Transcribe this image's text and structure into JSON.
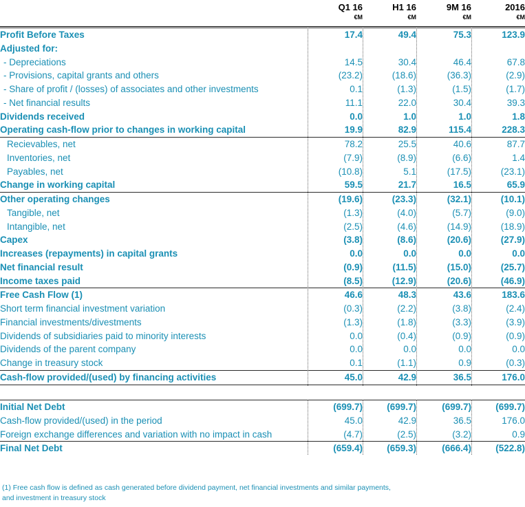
{
  "header": {
    "columns": [
      {
        "period": "Q1 16",
        "unit": "€M"
      },
      {
        "period": "H1 16",
        "unit": "€M"
      },
      {
        "period": "9M 16",
        "unit": "€M"
      },
      {
        "period": "2016",
        "unit": "€M"
      }
    ]
  },
  "rows1": [
    {
      "label": "Profit Before Taxes",
      "bold": true,
      "indent": 0,
      "values": [
        "17.4",
        "49.4",
        "75.3",
        "123.9"
      ]
    },
    {
      "label": "Adjusted for:",
      "bold": true,
      "indent": 0,
      "values": [
        "",
        "",
        "",
        ""
      ]
    },
    {
      "label": "- Depreciations",
      "bold": false,
      "indent": 1,
      "values": [
        "14.5",
        "30.4",
        "46.4",
        "67.8"
      ]
    },
    {
      "label": "- Provisions, capital grants and others",
      "bold": false,
      "indent": 1,
      "values": [
        "(23.2)",
        "(18.6)",
        "(36.3)",
        "(2.9)"
      ]
    },
    {
      "label": "- Share of profit / (losses) of associates and other investments",
      "bold": false,
      "indent": 1,
      "values": [
        "0.1",
        "(1.3)",
        "(1.5)",
        "(1.7)"
      ]
    },
    {
      "label": "- Net financial results",
      "bold": false,
      "indent": 1,
      "values": [
        "11.1",
        "22.0",
        "30.4",
        "39.3"
      ]
    },
    {
      "label": "Dividends received",
      "bold": true,
      "indent": 0,
      "values": [
        "0.0",
        "1.0",
        "1.0",
        "1.8"
      ]
    },
    {
      "label": "Operating cash-flow prior to changes in working capital",
      "bold": true,
      "indent": 0,
      "values": [
        "19.9",
        "82.9",
        "115.4",
        "228.3"
      ]
    },
    {
      "label": "Recievables, net",
      "bold": false,
      "indent": 2,
      "values": [
        "78.2",
        "25.5",
        "40.6",
        "87.7"
      ]
    },
    {
      "label": "Inventories, net",
      "bold": false,
      "indent": 2,
      "values": [
        "(7.9)",
        "(8.9)",
        "(6.6)",
        "1.4"
      ]
    },
    {
      "label": "Payables, net",
      "bold": false,
      "indent": 2,
      "values": [
        "(10.8)",
        "5.1",
        "(17.5)",
        "(23.1)"
      ]
    },
    {
      "label": "Change in working capital",
      "bold": true,
      "indent": 0,
      "values": [
        "59.5",
        "21.7",
        "16.5",
        "65.9"
      ]
    },
    {
      "label": "Other operating changes",
      "bold": true,
      "indent": 0,
      "values": [
        "(19.6)",
        "(23.3)",
        "(32.1)",
        "(10.1)"
      ]
    },
    {
      "label": "Tangible, net",
      "bold": false,
      "indent": 2,
      "values": [
        "(1.3)",
        "(4.0)",
        "(5.7)",
        "(9.0)"
      ]
    },
    {
      "label": "Intangible, net",
      "bold": false,
      "indent": 2,
      "values": [
        "(2.5)",
        "(4.6)",
        "(14.9)",
        "(18.9)"
      ]
    },
    {
      "label": "Capex",
      "bold": true,
      "indent": 0,
      "values": [
        "(3.8)",
        "(8.6)",
        "(20.6)",
        "(27.9)"
      ]
    },
    {
      "label": "Increases (repayments) in capital grants",
      "bold": true,
      "indent": 0,
      "values": [
        "0.0",
        "0.0",
        "0.0",
        "0.0"
      ]
    },
    {
      "label": "Net financial result",
      "bold": true,
      "indent": 0,
      "values": [
        "(0.9)",
        "(11.5)",
        "(15.0)",
        "(25.7)"
      ]
    },
    {
      "label": "Income taxes paid",
      "bold": true,
      "indent": 0,
      "values": [
        "(8.5)",
        "(12.9)",
        "(20.6)",
        "(46.9)"
      ]
    },
    {
      "label": "Free Cash Flow (1)",
      "bold": true,
      "indent": 0,
      "values": [
        "46.6",
        "48.3",
        "43.6",
        "183.6"
      ]
    },
    {
      "label": "Short term financial investment variation",
      "bold": false,
      "indent": 0,
      "values": [
        "(0.3)",
        "(2.2)",
        "(3.8)",
        "(2.4)"
      ]
    },
    {
      "label": "Financial investments/divestments",
      "bold": false,
      "indent": 0,
      "values": [
        "(1.3)",
        "(1.8)",
        "(3.3)",
        "(3.9)"
      ]
    },
    {
      "label": "Dividends of subsidiaries paid to minority interests",
      "bold": false,
      "indent": 0,
      "values": [
        "0.0",
        "(0.4)",
        "(0.9)",
        "(0.9)"
      ]
    },
    {
      "label": "Dividends of the parent company",
      "bold": false,
      "indent": 0,
      "values": [
        "0.0",
        "0.0",
        "0.0",
        "0.0"
      ]
    },
    {
      "label": "Change in treasury stock",
      "bold": false,
      "indent": 0,
      "values": [
        "0.1",
        "(1.1)",
        "0.9",
        "(0.3)"
      ]
    },
    {
      "label": "Cash-flow provided/(used) by financing activities",
      "bold": true,
      "indent": 0,
      "values": [
        "45.0",
        "42.9",
        "36.5",
        "176.0"
      ]
    }
  ],
  "rows2": [
    {
      "label": "Initial Net Debt",
      "bold": true,
      "indent": 0,
      "values": [
        "(699.7)",
        "(699.7)",
        "(699.7)",
        "(699.7)"
      ]
    },
    {
      "label": "Cash-flow provided/(used) in the period",
      "bold": false,
      "indent": 0,
      "values": [
        "45.0",
        "42.9",
        "36.5",
        "176.0"
      ]
    },
    {
      "label": "Foreign exchange differences and variation with no impact in cash",
      "bold": false,
      "indent": 0,
      "values": [
        "(4.7)",
        "(2.5)",
        "(3.2)",
        "0.9"
      ]
    },
    {
      "label": "Final Net Debt",
      "bold": true,
      "indent": 0,
      "values": [
        "(659.4)",
        "(659.3)",
        "(666.4)",
        "(522.8)"
      ]
    }
  ],
  "footnote": {
    "line1": "(1) Free cash flow is defined as cash generated before dividend payment, net financial investments and similar payments,",
    "line2": "and investment in treasury stock"
  }
}
